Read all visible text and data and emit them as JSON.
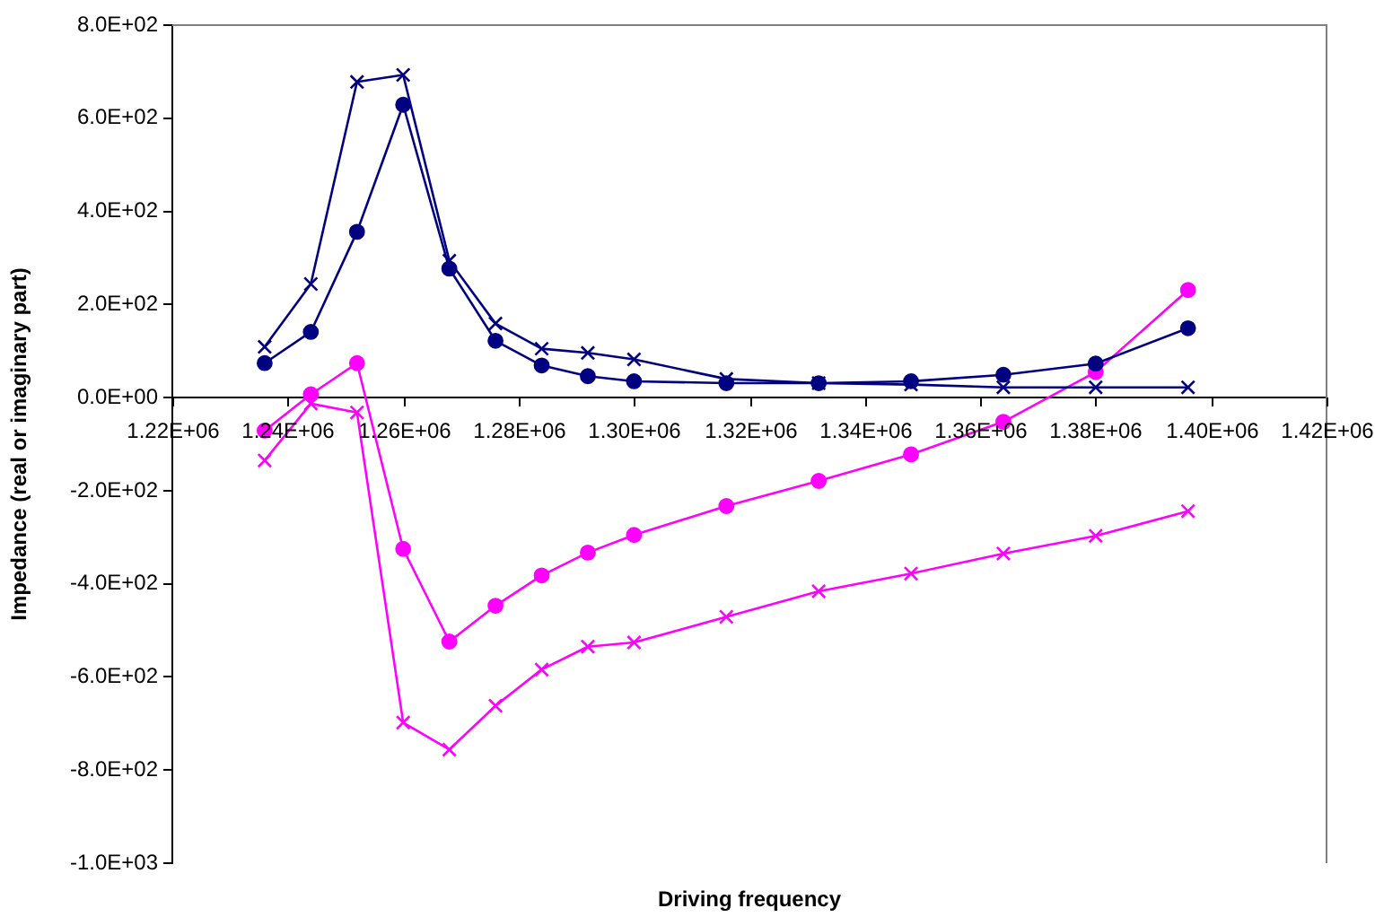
{
  "chart_data": {
    "type": "line",
    "xlabel": "Driving frequency",
    "ylabel": "Impedance (real or imaginary part)",
    "x": [
      1236000,
      1244000,
      1252000,
      1260000,
      1268000,
      1276000,
      1284000,
      1292000,
      1300000,
      1316000,
      1332000,
      1348000,
      1364000,
      1380000,
      1396000
    ],
    "series": [
      {
        "color": "#000080",
        "marker": "circle",
        "values": [
          74,
          141,
          356,
          629,
          277,
          122,
          69,
          46,
          35,
          31,
          31,
          35,
          49,
          73,
          149
        ]
      },
      {
        "color": "#000080",
        "marker": "cross",
        "values": [
          109,
          244,
          678,
          693,
          294,
          159,
          105,
          96,
          82,
          40,
          31,
          28,
          22,
          22,
          22
        ]
      },
      {
        "color": "#ff00ff",
        "marker": "circle",
        "values": [
          -71,
          7,
          74,
          -325,
          -524,
          -447,
          -382,
          -333,
          -295,
          -233,
          -179,
          -122,
          -52,
          55,
          231
        ]
      },
      {
        "color": "#ff00ff",
        "marker": "cross",
        "values": [
          -135,
          -13,
          -32,
          -698,
          -756,
          -662,
          -584,
          -535,
          -526,
          -471,
          -416,
          -378,
          -335,
          -297,
          -244
        ]
      }
    ],
    "xlim": [
      1220000,
      1420000
    ],
    "xticks": [
      {
        "value": 1220000,
        "label": "1.22E+06"
      },
      {
        "value": 1240000,
        "label": "1.24E+06"
      },
      {
        "value": 1260000,
        "label": "1.26E+06"
      },
      {
        "value": 1280000,
        "label": "1.28E+06"
      },
      {
        "value": 1300000,
        "label": "1.30E+06"
      },
      {
        "value": 1320000,
        "label": "1.32E+06"
      },
      {
        "value": 1340000,
        "label": "1.34E+06"
      },
      {
        "value": 1360000,
        "label": "1.36E+06"
      },
      {
        "value": 1380000,
        "label": "1.38E+06"
      },
      {
        "value": 1400000,
        "label": "1.40E+06"
      },
      {
        "value": 1420000,
        "label": "1.42E+06"
      }
    ],
    "ylim": [
      -1000,
      800
    ],
    "yticks": [
      {
        "value": -1000,
        "label": "-1.0E+03"
      },
      {
        "value": -800,
        "label": "-8.0E+02"
      },
      {
        "value": -600,
        "label": "-6.0E+02"
      },
      {
        "value": -400,
        "label": "-4.0E+02"
      },
      {
        "value": -200,
        "label": "-2.0E+02"
      },
      {
        "value": 0,
        "label": "0.0E+00"
      },
      {
        "value": 200,
        "label": "2.0E+02"
      },
      {
        "value": 400,
        "label": "4.0E+02"
      },
      {
        "value": 600,
        "label": "6.0E+02"
      },
      {
        "value": 800,
        "label": "8.0E+02"
      }
    ],
    "grid": false,
    "legend": false
  }
}
